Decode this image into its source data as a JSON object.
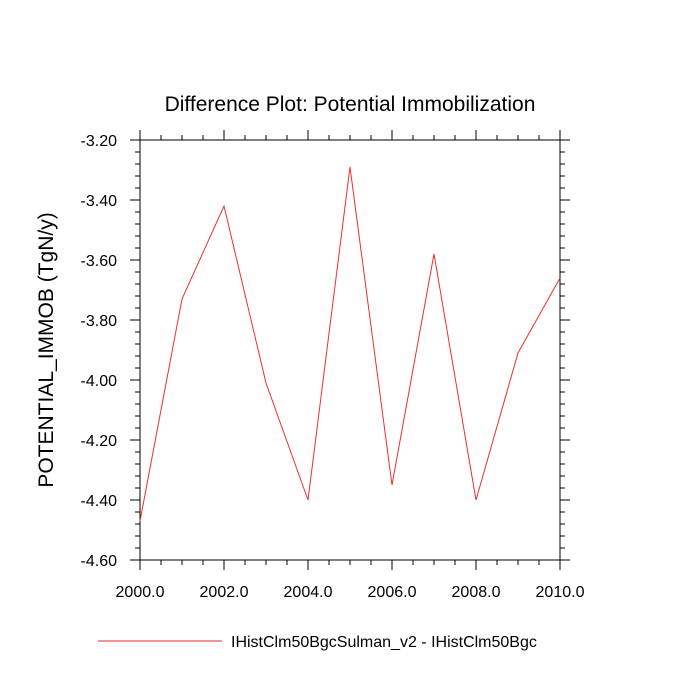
{
  "chart_data": {
    "type": "line",
    "title": "Difference Plot: Potential Immobilization",
    "xlabel": "",
    "ylabel": "POTENTIAL_IMMOB  (TgN/y)",
    "xlim": [
      2000,
      2010
    ],
    "ylim": [
      -4.6,
      -3.2
    ],
    "x_ticks": [
      "2000.0",
      "2002.0",
      "2004.0",
      "2006.0",
      "2008.0",
      "2010.0"
    ],
    "y_ticks": [
      "-3.20",
      "-3.40",
      "-3.60",
      "-3.80",
      "-4.00",
      "-4.20",
      "-4.40",
      "-4.60"
    ],
    "grid": false,
    "legend_position": "bottom",
    "series": [
      {
        "name": "IHistClm50BgcSulman_v2 - IHistClm50Bgc",
        "color": "#e8312f",
        "x": [
          2000,
          2001,
          2002,
          2003,
          2004,
          2005,
          2006,
          2007,
          2008,
          2009,
          2010
        ],
        "y": [
          -4.47,
          -3.73,
          -3.42,
          -4.01,
          -4.4,
          -3.29,
          -4.35,
          -3.58,
          -4.4,
          -3.91,
          -3.66
        ]
      }
    ]
  }
}
